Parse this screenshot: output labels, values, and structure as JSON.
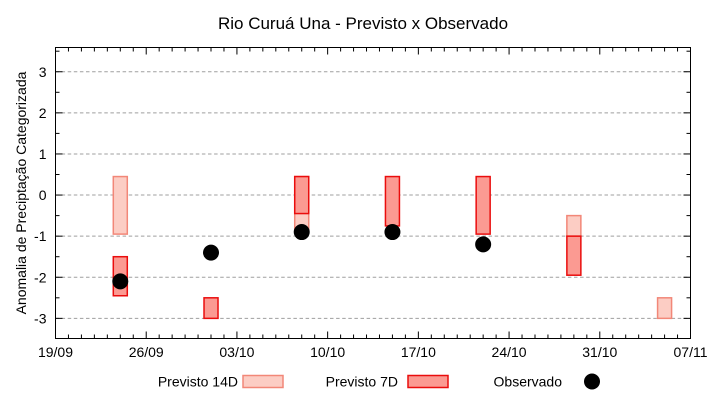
{
  "window_title": "Rio Curuá Una - Previsto x Observado",
  "chart_data": {
    "type": "bar",
    "subtype": "forecast-range-bars-with-observed-scatter",
    "title": "Rio Curuá Una - Previsto x Observado",
    "xlabel": "",
    "ylabel": "Anomalia de Preciptação Categorizada",
    "grid": true,
    "grid_style": "dashed-horizontal",
    "legend_position": "bottom",
    "yaxis": {
      "min": -3.49,
      "max": 3.59,
      "gridline_values": [
        -3,
        -2,
        -1,
        0,
        1,
        2,
        3
      ],
      "tick_values": [
        -3,
        -2,
        -1,
        0,
        1,
        2,
        3
      ],
      "tick_labels": [
        "-3",
        "-2",
        "-1",
        "0",
        "1",
        "2",
        "3"
      ],
      "minor_tick_step": 0.5
    },
    "xaxis": {
      "total_days": 49,
      "major_tick_step_days": 7,
      "minor_tick_step_days": 1,
      "tick_labels": [
        "19/09",
        "26/09",
        "03/10",
        "10/10",
        "17/10",
        "24/10",
        "31/10",
        "07/11"
      ]
    },
    "series": [
      {
        "name": "Previsto 14D",
        "type": "range-bar",
        "fill": "#fccdc4",
        "border": "#f28778",
        "bars": [
          {
            "date": "24/09",
            "day": 5,
            "from": -0.95,
            "to": 0.45
          },
          {
            "date": "08/10",
            "day": 19,
            "from": -0.9,
            "to": 0.45
          },
          {
            "date": "29/10",
            "day": 40,
            "from": -1.0,
            "to": -0.5
          },
          {
            "date": "05/11",
            "day": 47,
            "from": -3.0,
            "to": -2.5
          }
        ]
      },
      {
        "name": "Previsto 7D",
        "type": "range-bar",
        "fill": "#fb9a92",
        "border": "#ea0d0d",
        "bars": [
          {
            "date": "24/09",
            "day": 5,
            "from": -2.45,
            "to": -1.5
          },
          {
            "date": "01/10",
            "day": 12,
            "from": -3.0,
            "to": -2.5
          },
          {
            "date": "08/10",
            "day": 19,
            "from": -0.45,
            "to": 0.45
          },
          {
            "date": "15/10",
            "day": 26,
            "from": -0.75,
            "to": 0.45
          },
          {
            "date": "22/10",
            "day": 33,
            "from": -0.95,
            "to": 0.45
          },
          {
            "date": "29/10",
            "day": 40,
            "from": -1.95,
            "to": -1.0
          }
        ]
      },
      {
        "name": "Observado",
        "type": "scatter",
        "marker": "filled-circle",
        "color": "#000000",
        "points": [
          {
            "date": "24/09",
            "day": 5,
            "value": -2.1
          },
          {
            "date": "01/10",
            "day": 12,
            "value": -1.4
          },
          {
            "date": "08/10",
            "day": 19,
            "value": -0.9
          },
          {
            "date": "15/10",
            "day": 26,
            "value": -0.9
          },
          {
            "date": "22/10",
            "day": 33,
            "value": -1.2
          }
        ]
      }
    ]
  },
  "legend": {
    "items": [
      {
        "label": "Previsto 14D",
        "swatch": "bar-14d"
      },
      {
        "label": "Previsto 7D",
        "swatch": "bar-7d"
      },
      {
        "label": "Observado",
        "swatch": "black-dot"
      }
    ]
  },
  "colors": {
    "background": "#ffffff",
    "axis": "#000000",
    "grid": "#9f9f9f",
    "title_text": "#000000"
  }
}
